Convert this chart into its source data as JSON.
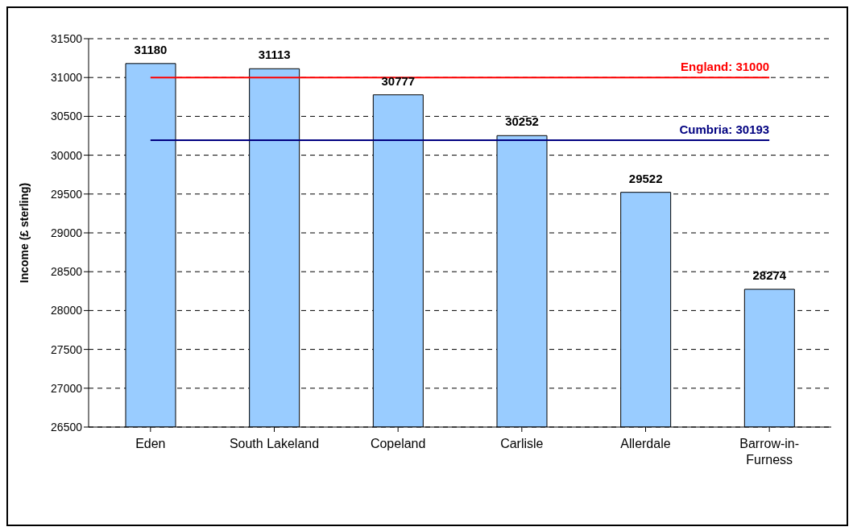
{
  "chart_data": {
    "type": "bar",
    "ylabel": "Income (£ sterling)",
    "categories": [
      "Eden",
      "South Lakeland",
      "Copeland",
      "Carlisle",
      "Allerdale",
      "Barrow-in-Furness"
    ],
    "values": [
      31180,
      31113,
      30777,
      30252,
      29522,
      28274
    ],
    "color": "#99ccff",
    "ylim": [
      26500,
      31500
    ],
    "yticks": [
      26500,
      27000,
      27500,
      28000,
      28500,
      29000,
      29500,
      30000,
      30500,
      31000,
      31500
    ],
    "grid": "y",
    "data_labels": true,
    "legend": false,
    "ref_lines": [
      {
        "axis": "y",
        "value": 31000,
        "label": "England: 31000",
        "color": "#ff0000"
      },
      {
        "axis": "y",
        "value": 30193,
        "label": "Cumbria: 30193",
        "color": "#000080"
      }
    ]
  }
}
